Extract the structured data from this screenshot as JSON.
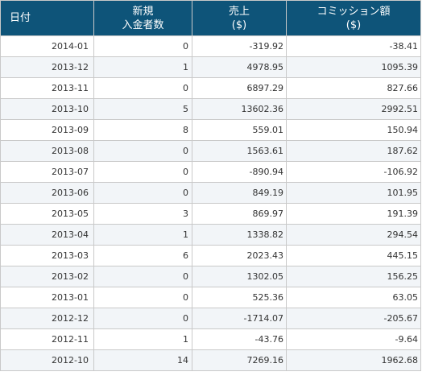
{
  "table": {
    "headers": {
      "date": "日付",
      "new_depositors_line1": "新規",
      "new_depositors_line2": "入金者数",
      "sales_line1": "売上",
      "sales_line2": "($)",
      "commission_line1": "コミッション額",
      "commission_line2": "($)"
    },
    "rows": [
      {
        "date": "2014-01",
        "new_depositors": "0",
        "sales": "-319.92",
        "commission": "-38.41"
      },
      {
        "date": "2013-12",
        "new_depositors": "1",
        "sales": "4978.95",
        "commission": "1095.39"
      },
      {
        "date": "2013-11",
        "new_depositors": "0",
        "sales": "6897.29",
        "commission": "827.66"
      },
      {
        "date": "2013-10",
        "new_depositors": "5",
        "sales": "13602.36",
        "commission": "2992.51"
      },
      {
        "date": "2013-09",
        "new_depositors": "8",
        "sales": "559.01",
        "commission": "150.94"
      },
      {
        "date": "2013-08",
        "new_depositors": "0",
        "sales": "1563.61",
        "commission": "187.62"
      },
      {
        "date": "2013-07",
        "new_depositors": "0",
        "sales": "-890.94",
        "commission": "-106.92"
      },
      {
        "date": "2013-06",
        "new_depositors": "0",
        "sales": "849.19",
        "commission": "101.95"
      },
      {
        "date": "2013-05",
        "new_depositors": "3",
        "sales": "869.97",
        "commission": "191.39"
      },
      {
        "date": "2013-04",
        "new_depositors": "1",
        "sales": "1338.82",
        "commission": "294.54"
      },
      {
        "date": "2013-03",
        "new_depositors": "6",
        "sales": "2023.43",
        "commission": "445.15"
      },
      {
        "date": "2013-02",
        "new_depositors": "0",
        "sales": "1302.05",
        "commission": "156.25"
      },
      {
        "date": "2013-01",
        "new_depositors": "0",
        "sales": "525.36",
        "commission": "63.05"
      },
      {
        "date": "2012-12",
        "new_depositors": "0",
        "sales": "-1714.07",
        "commission": "-205.67"
      },
      {
        "date": "2012-11",
        "new_depositors": "1",
        "sales": "-43.76",
        "commission": "-9.64"
      },
      {
        "date": "2012-10",
        "new_depositors": "14",
        "sales": "7269.16",
        "commission": "1962.68"
      }
    ]
  },
  "colors": {
    "header_background": "#0e5479",
    "header_text": "#ffffff",
    "border": "#c9c9c9",
    "even_row_background": "#f2f5f8"
  }
}
